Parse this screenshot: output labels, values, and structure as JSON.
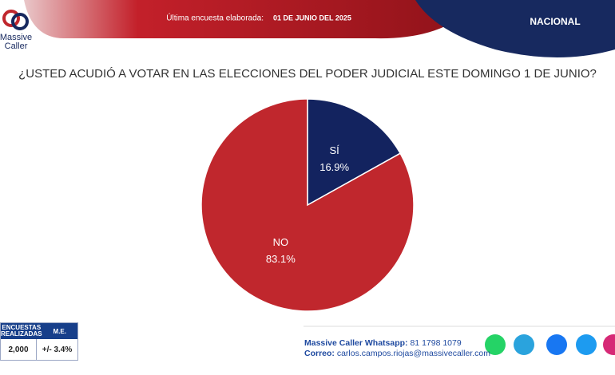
{
  "header": {
    "survey_label": "Última encuesta elaborada:",
    "survey_date": "01 DE JUNIO DEL 2025",
    "scope": "NACIONAL",
    "brand_line1": "Massive",
    "brand_line2": "Caller"
  },
  "chart_data": {
    "type": "pie",
    "title": "¿USTED ACUDIÓ A VOTAR EN LAS ELECCIONES DEL PODER JUDICIAL ESTE DOMINGO 1 DE JUNIO?",
    "categories": [
      "SÍ",
      "NO"
    ],
    "values": [
      16.9,
      83.1
    ],
    "value_labels": [
      "16.9%",
      "83.1%"
    ],
    "colors": [
      "#13235f",
      "#c0272d"
    ]
  },
  "table": {
    "headers": [
      "ENCUESTAS REALIZADAS",
      "M.E."
    ],
    "rows": [
      [
        "2,000",
        "+/- 3.4%"
      ]
    ]
  },
  "footer": {
    "whatsapp_label": "Massive Caller Whatsapp:",
    "whatsapp_number": "81 1798 1079",
    "email_label": "Correo:",
    "email": "carlos.campos.riojas@massivecaller.com"
  }
}
